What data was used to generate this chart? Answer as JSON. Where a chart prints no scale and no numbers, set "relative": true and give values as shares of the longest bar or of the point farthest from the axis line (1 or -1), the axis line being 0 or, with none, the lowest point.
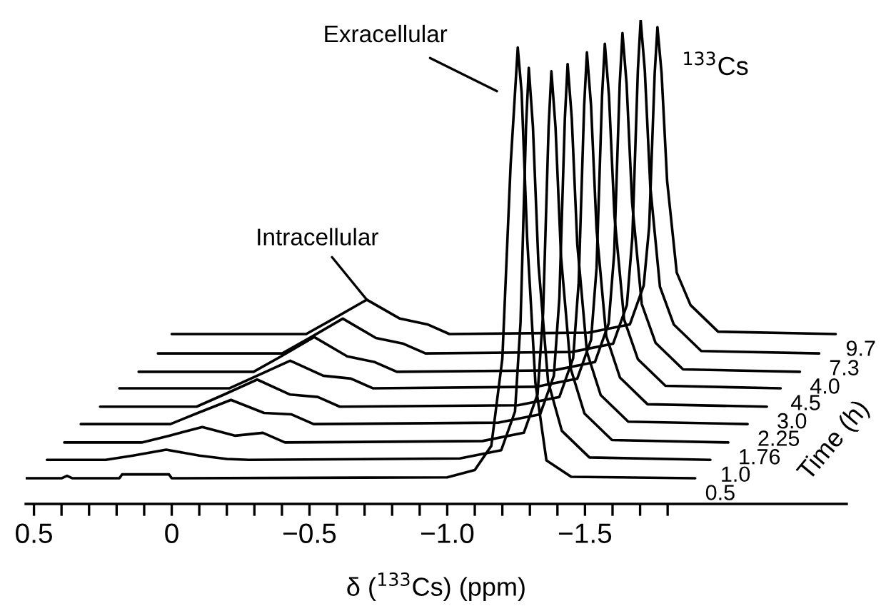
{
  "chart_data": {
    "type": "line",
    "relative": true,
    "xlabel": "δ ($^{133}$Cs) (ppm)",
    "legend_title": "Time (h)",
    "tick_labels": "x",
    "xlim": [
      0.53,
      -2.45
    ],
    "xticks": [
      0.5,
      {
        "value": 0.4,
        "label": null
      },
      {
        "value": 0.3,
        "label": null
      },
      {
        "value": 0.2,
        "label": null
      },
      {
        "value": 0.1,
        "label": null
      },
      0,
      {
        "value": -0.1,
        "label": null
      },
      {
        "value": -0.2,
        "label": null
      },
      {
        "value": -0.3,
        "label": null
      },
      {
        "value": -0.4,
        "label": null
      },
      {
        "value": -0.5,
        "label": "−0.5"
      },
      {
        "value": -0.6,
        "label": null
      },
      {
        "value": -0.7,
        "label": null
      },
      {
        "value": -0.8,
        "label": null
      },
      {
        "value": -0.9,
        "label": null
      },
      {
        "value": -1.0,
        "label": "−1.0"
      },
      {
        "value": -1.1,
        "label": null
      },
      {
        "value": -1.2,
        "label": null
      },
      {
        "value": -1.3,
        "label": null
      },
      {
        "value": -1.4,
        "label": null
      },
      {
        "value": -1.5,
        "label": "−1.5"
      },
      {
        "value": -1.6,
        "label": null
      },
      {
        "value": -1.7,
        "label": null
      },
      {
        "value": -1.8,
        "label": null
      }
    ],
    "annotations": [
      {
        "text": "Intracellular",
        "x": -0.708,
        "y": 0.422
      },
      "Exracellular",
      "$^{133}$Cs"
    ],
    "series": [
      {
        "name": "0.5",
        "color": "#000000",
        "x": [
          0.53,
          0.4,
          0.38,
          0.36,
          0.19,
          0.18,
          0.01,
          0.0,
          -1.0,
          -1.1,
          -1.16,
          -1.2,
          -1.23,
          -1.256,
          -1.27,
          -1.29,
          -1.32,
          -1.36,
          -1.45,
          -1.9
        ],
        "values": [
          0.053,
          0.053,
          0.058,
          0.053,
          0.053,
          0.061,
          0.061,
          0.053,
          0.055,
          0.07,
          0.12,
          0.3,
          0.7,
          0.943,
          0.85,
          0.55,
          0.25,
          0.09,
          0.056,
          0.053
        ]
      },
      {
        "name": "1.0",
        "color": "#000000",
        "x": [
          0.453,
          0.24,
          0.14,
          0.02,
          -0.1,
          -0.2,
          -0.28,
          -1.046,
          -1.196,
          -1.246,
          -1.266,
          -1.286,
          -1.296,
          -1.311,
          -1.331,
          -1.366,
          -1.416,
          -1.516,
          -1.955
        ],
        "values": [
          0.091,
          0.091,
          0.1,
          0.112,
          0.1,
          0.093,
          0.091,
          0.094,
          0.111,
          0.191,
          0.375,
          0.78,
          0.901,
          0.78,
          0.496,
          0.253,
          0.151,
          0.096,
          0.091
        ]
      },
      {
        "name": "1.76",
        "color": "#000000",
        "x": [
          0.39,
          0.109,
          0.009,
          -0.111,
          -0.231,
          -0.331,
          -0.411,
          -1.128,
          -1.278,
          -1.328,
          -1.348,
          -1.368,
          -1.378,
          -1.393,
          -1.413,
          -1.448,
          -1.498,
          -1.598,
          -2.02
        ],
        "values": [
          0.127,
          0.127,
          0.141,
          0.159,
          0.141,
          0.147,
          0.127,
          0.13,
          0.147,
          0.227,
          0.395,
          0.779,
          0.894,
          0.779,
          0.511,
          0.28,
          0.187,
          0.132,
          0.127
        ]
      },
      {
        "name": "2.25",
        "color": "#000000",
        "x": [
          0.33,
          0.005,
          -0.095,
          -0.215,
          -0.335,
          -0.435,
          -0.515,
          -1.187,
          -1.337,
          -1.387,
          -1.407,
          -1.427,
          -1.437,
          -1.452,
          -1.472,
          -1.507,
          -1.557,
          -1.657,
          -2.09
        ],
        "values": [
          0.165,
          0.165,
          0.188,
          0.215,
          0.188,
          0.185,
          0.165,
          0.168,
          0.185,
          0.265,
          0.425,
          0.797,
          0.909,
          0.797,
          0.537,
          0.314,
          0.225,
          0.17,
          0.165
        ]
      },
      {
        "name": "3.0",
        "color": "#000000",
        "x": [
          0.26,
          -0.09,
          -0.19,
          -0.31,
          -0.43,
          -0.53,
          -0.61,
          -1.257,
          -1.407,
          -1.457,
          -1.477,
          -1.497,
          -1.507,
          -1.522,
          -1.542,
          -1.577,
          -1.627,
          -1.727,
          -2.16
        ],
        "values": [
          0.201,
          0.201,
          0.226,
          0.257,
          0.226,
          0.221,
          0.201,
          0.204,
          0.221,
          0.301,
          0.457,
          0.823,
          0.933,
          0.823,
          0.567,
          0.347,
          0.261,
          0.206,
          0.201
        ]
      },
      {
        "name": "4.5",
        "color": "#000000",
        "x": [
          0.19,
          -0.21,
          -0.31,
          -0.43,
          -0.55,
          -0.65,
          -0.73,
          -1.322,
          -1.472,
          -1.522,
          -1.542,
          -1.562,
          -1.572,
          -1.587,
          -1.607,
          -1.642,
          -1.692,
          -1.792,
          -2.21
        ],
        "values": [
          0.239,
          0.239,
          0.265,
          0.296,
          0.265,
          0.259,
          0.239,
          0.242,
          0.259,
          0.339,
          0.488,
          0.844,
          0.951,
          0.844,
          0.595,
          0.381,
          0.299,
          0.244,
          0.239
        ]
      },
      {
        "name": "4.0",
        "color": "#000000",
        "x": [
          0.12,
          -0.297,
          -0.397,
          -0.517,
          -0.637,
          -0.737,
          -0.817,
          -1.386,
          -1.536,
          -1.586,
          -1.606,
          -1.626,
          -1.636,
          -1.651,
          -1.671,
          -1.706,
          -1.756,
          -1.856,
          -2.28
        ],
        "values": [
          0.273,
          0.273,
          0.305,
          0.345,
          0.305,
          0.293,
          0.273,
          0.276,
          0.293,
          0.373,
          0.518,
          0.868,
          0.973,
          0.868,
          0.623,
          0.413,
          0.333,
          0.278,
          0.273
        ]
      },
      {
        "name": "7.3",
        "color": "#000000",
        "x": [
          0.05,
          -0.401,
          -0.501,
          -0.621,
          -0.741,
          -0.841,
          -0.921,
          -1.452,
          -1.602,
          -1.652,
          -1.672,
          -1.692,
          -1.702,
          -1.717,
          -1.737,
          -1.772,
          -1.822,
          -1.922,
          -2.35
        ],
        "values": [
          0.311,
          0.311,
          0.343,
          0.383,
          0.343,
          0.331,
          0.311,
          0.314,
          0.331,
          0.411,
          0.552,
          0.897,
          1.0,
          0.897,
          0.656,
          0.449,
          0.371,
          0.316,
          0.311
        ]
      },
      {
        "name": "9.7",
        "color": "#000000",
        "x": [
          0.0,
          -0.488,
          -0.588,
          -0.708,
          -0.828,
          -0.928,
          -1.008,
          -1.513,
          -1.663,
          -1.713,
          -1.733,
          -1.753,
          -1.763,
          -1.778,
          -1.798,
          -1.833,
          -1.883,
          -1.983,
          -2.41
        ],
        "values": [
          0.351,
          0.351,
          0.383,
          0.422,
          0.383,
          0.371,
          0.351,
          0.354,
          0.371,
          0.451,
          0.573,
          0.89,
          0.985,
          0.89,
          0.668,
          0.478,
          0.411,
          0.356,
          0.351
        ]
      }
    ]
  }
}
